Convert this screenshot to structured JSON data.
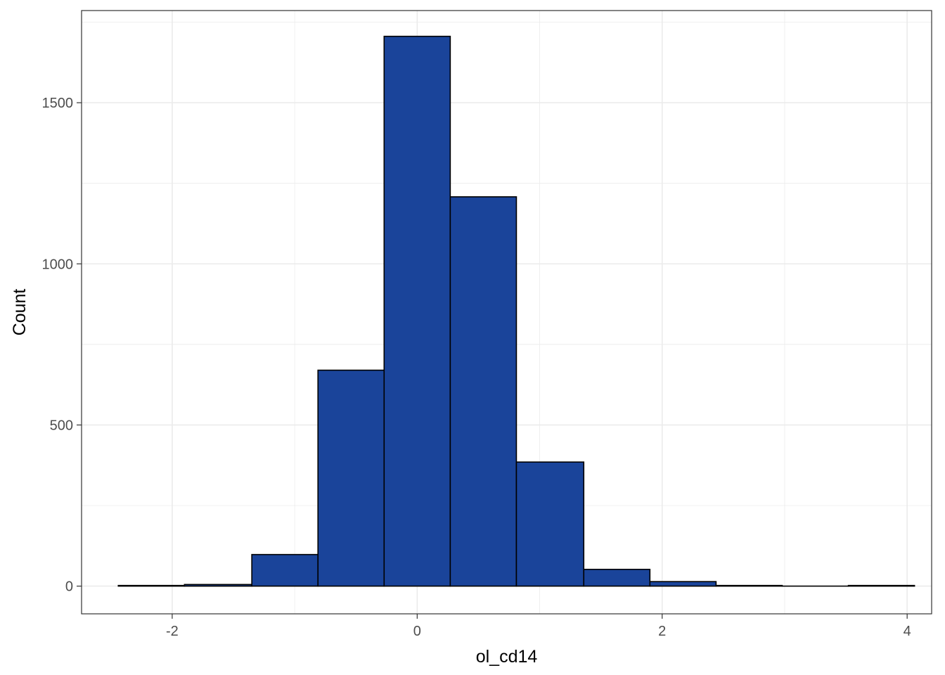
{
  "chart_data": {
    "type": "bar",
    "subtype": "histogram",
    "xlabel": "ol_cd14",
    "ylabel": "Count",
    "xlim": [
      -2.74,
      4.2
    ],
    "ylim": [
      -86,
      1786
    ],
    "x_ticks": [
      -2,
      0,
      2,
      4
    ],
    "x_tick_labels": [
      "-2",
      "0",
      "2",
      "4"
    ],
    "y_ticks": [
      0,
      500,
      1000,
      1500
    ],
    "y_tick_labels": [
      "0",
      "500",
      "1000",
      "1500"
    ],
    "grid": true,
    "bins": [
      {
        "x0": -2.44,
        "x1": -1.9,
        "count": 2
      },
      {
        "x0": -1.9,
        "x1": -1.35,
        "count": 5
      },
      {
        "x0": -1.35,
        "x1": -0.81,
        "count": 98
      },
      {
        "x0": -0.81,
        "x1": -0.27,
        "count": 670
      },
      {
        "x0": -0.27,
        "x1": 0.27,
        "count": 1706
      },
      {
        "x0": 0.27,
        "x1": 0.81,
        "count": 1208
      },
      {
        "x0": 0.81,
        "x1": 1.36,
        "count": 385
      },
      {
        "x0": 1.36,
        "x1": 1.9,
        "count": 52
      },
      {
        "x0": 1.9,
        "x1": 2.44,
        "count": 14
      },
      {
        "x0": 2.44,
        "x1": 2.98,
        "count": 2
      },
      {
        "x0": 2.98,
        "x1": 3.52,
        "count": 0
      },
      {
        "x0": 3.52,
        "x1": 4.06,
        "count": 2
      }
    ],
    "colors": {
      "fill": "#1a449a",
      "stroke": "#000000",
      "grid": "#ebebeb",
      "panel_border": "#333333"
    }
  }
}
